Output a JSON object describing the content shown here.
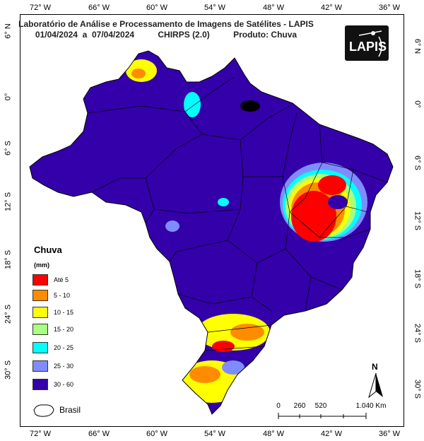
{
  "title": {
    "line1": "Laboratório de Análise e Processamento de Imagens de Satélites - LAPIS",
    "line2": "01/04/2024  a  07/04/2024          CHIRPS (2.0)          Produto: Chuva"
  },
  "logo": {
    "text": "LAPIS"
  },
  "longitude_ticks": [
    "72° W",
    "66° W",
    "60° W",
    "54° W",
    "48° W",
    "42° W",
    "36° W"
  ],
  "latitude_ticks": [
    "6° N",
    "0°",
    "6° S",
    "12° S",
    "18° S",
    "24° S",
    "30° S"
  ],
  "legend": {
    "title": "Chuva",
    "unit": "(mm)",
    "items": [
      {
        "label": "Até 5",
        "color": "#ff0000"
      },
      {
        "label": "5 - 10",
        "color": "#ff8c00"
      },
      {
        "label": "10 - 15",
        "color": "#ffff00"
      },
      {
        "label": "15 - 20",
        "color": "#aaff80"
      },
      {
        "label": "20 - 25",
        "color": "#00ffff"
      },
      {
        "label": "25 - 30",
        "color": "#7f8cff"
      },
      {
        "label": "30 - 60",
        "color": "#3300aa"
      }
    ]
  },
  "boundary_legend": {
    "label": "Brasil"
  },
  "scale_bar": {
    "labels": [
      "0",
      "260",
      "520",
      "1.040 Km"
    ]
  },
  "north_arrow": {
    "label": "N"
  },
  "colors": {
    "ocean": "#ffffff",
    "background_rain": "#3300aa",
    "border": "#000000"
  }
}
